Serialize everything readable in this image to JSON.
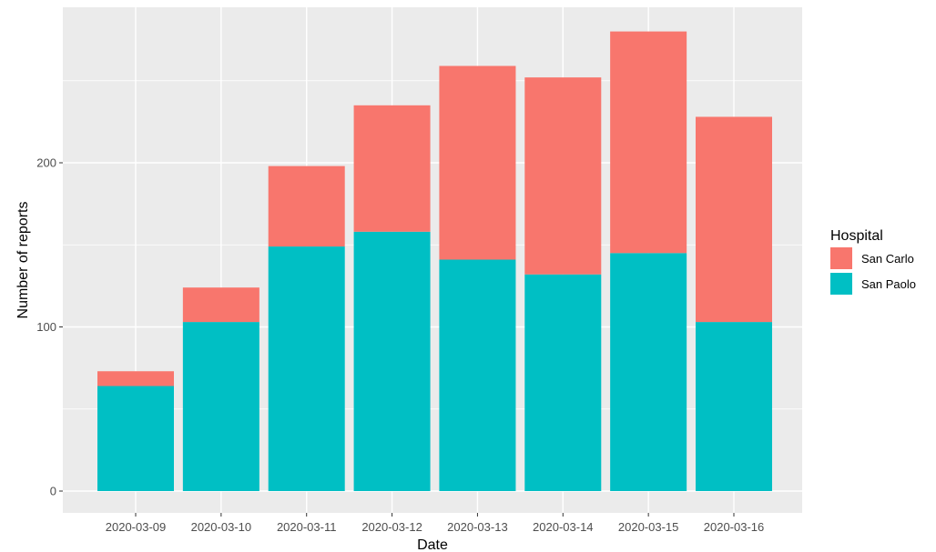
{
  "chart_data": {
    "type": "bar",
    "stacked": true,
    "xlabel": "Date",
    "ylabel": "Number of reports",
    "categories": [
      "2020-03-09",
      "2020-03-10",
      "2020-03-11",
      "2020-03-12",
      "2020-03-13",
      "2020-03-14",
      "2020-03-15",
      "2020-03-16"
    ],
    "series": [
      {
        "name": "San Paolo",
        "color": "#00BFC4",
        "values": [
          64,
          103,
          149,
          158,
          141,
          132,
          145,
          103
        ]
      },
      {
        "name": "San Carlo",
        "color": "#F8766D",
        "values": [
          9,
          21,
          49,
          77,
          118,
          120,
          135,
          125
        ]
      }
    ],
    "ylim": [
      0,
      290
    ],
    "yticks": [
      0,
      100,
      200
    ],
    "grid": true,
    "legend": {
      "title": "Hospital",
      "position": "right",
      "order": [
        "San Carlo",
        "San Paolo"
      ]
    },
    "panel_background": "#EBEBEB",
    "grid_color": "#FFFFFF"
  }
}
